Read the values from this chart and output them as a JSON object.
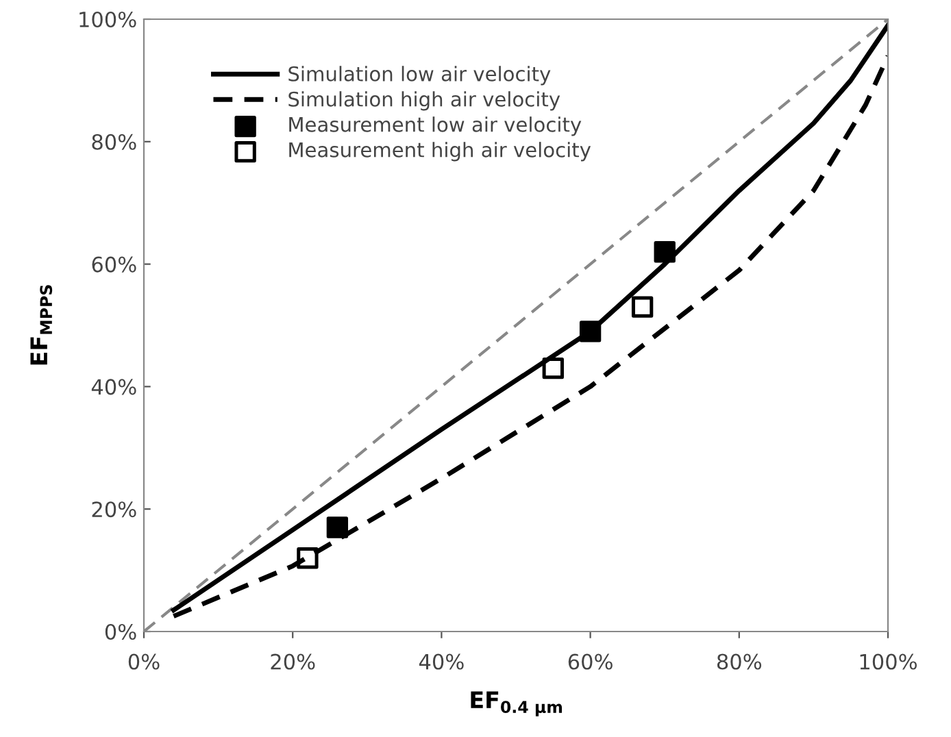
{
  "chart_data": {
    "type": "line",
    "xlabel": "EF$_{0.4 μm}$",
    "ylabel": "EF$_{MPPS}$",
    "xlim": [
      0,
      100
    ],
    "ylim": [
      0,
      100
    ],
    "xticks": [
      {
        "value": 0,
        "label": "0%"
      },
      {
        "value": 20,
        "label": "20%"
      },
      {
        "value": 40,
        "label": "40%"
      },
      {
        "value": 60,
        "label": "60%"
      },
      {
        "value": 80,
        "label": "80%"
      },
      {
        "value": 100,
        "label": "100%"
      }
    ],
    "yticks": [
      {
        "value": 0,
        "label": "0%"
      },
      {
        "value": 20,
        "label": "20%"
      },
      {
        "value": 40,
        "label": "40%"
      },
      {
        "value": 60,
        "label": "60%"
      },
      {
        "value": 80,
        "label": "80%"
      },
      {
        "value": 100,
        "label": "100%"
      }
    ],
    "grid": false,
    "legend": "top left",
    "series": [
      {
        "color": "#888888",
        "line_style": "dashed",
        "marker": "none",
        "x": [
          0,
          100
        ],
        "values": [
          0,
          100
        ]
      },
      {
        "name": "Simulation low air velocity",
        "color": "#000000",
        "line_style": "solid",
        "marker": "none",
        "x": [
          4,
          20,
          40,
          60,
          70,
          80,
          90,
          95,
          100
        ],
        "values": [
          3.5,
          16.6,
          33,
          49,
          60,
          72,
          83,
          90,
          99
        ]
      },
      {
        "name": "Simulation high air velocity",
        "color": "#000000",
        "line_style": "dashed",
        "marker": "none",
        "x": [
          4,
          20,
          40,
          60,
          80,
          90,
          97,
          100
        ],
        "values": [
          2.5,
          10.7,
          25,
          40,
          59,
          72,
          86,
          94
        ]
      },
      {
        "type": "scatter",
        "name": "Measurement low air velocity",
        "color": "#000000",
        "marker": "square",
        "x": [
          26,
          60,
          70
        ],
        "values": [
          17,
          49,
          62
        ]
      },
      {
        "type": "scatter",
        "name": "Measurement high air velocity",
        "color": "#000000",
        "marker": "square_open",
        "x": [
          22,
          55,
          67
        ],
        "values": [
          12,
          43,
          53
        ]
      }
    ]
  }
}
